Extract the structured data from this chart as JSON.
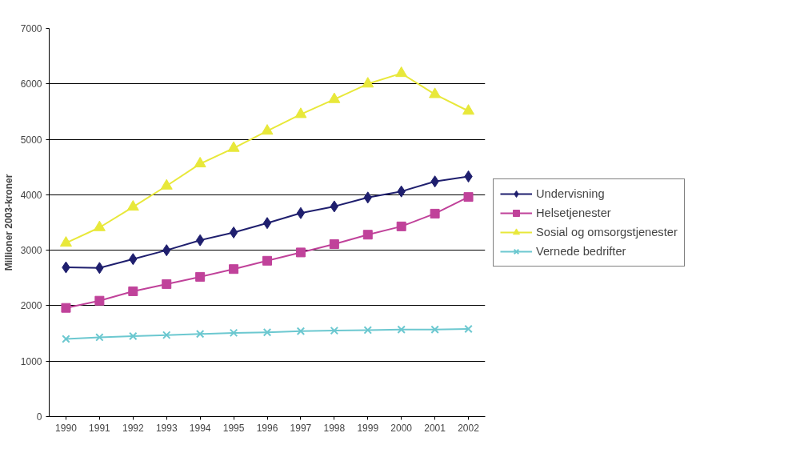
{
  "chart_data": {
    "type": "line",
    "ylabel": "Millioner 2003-kroner",
    "categories": [
      "1990",
      "1991",
      "1992",
      "1993",
      "1994",
      "1995",
      "1996",
      "1997",
      "1998",
      "1999",
      "2000",
      "2001",
      "2002"
    ],
    "ylim": [
      0,
      7000
    ],
    "yticks": [
      0,
      1000,
      2000,
      3000,
      4000,
      5000,
      6000,
      7000
    ],
    "grid": "y",
    "legend": "right",
    "line_style": "solid",
    "series": [
      {
        "name": "Undervisning",
        "color": "#1f1f6e",
        "marker": "diamond",
        "values": [
          2690,
          2680,
          2840,
          3000,
          3180,
          3320,
          3490,
          3670,
          3790,
          3950,
          4060,
          4240,
          4330
        ]
      },
      {
        "name": "Helsetjenester",
        "color": "#c0429a",
        "marker": "square",
        "values": [
          1960,
          2090,
          2260,
          2390,
          2520,
          2660,
          2810,
          2960,
          3110,
          3280,
          3430,
          3660,
          3960
        ]
      },
      {
        "name": "Sosial og omsorgstjenester",
        "color": "#e8e83a",
        "marker": "triangle",
        "values": [
          3130,
          3410,
          3780,
          4160,
          4560,
          4840,
          5150,
          5450,
          5720,
          6000,
          6190,
          5810,
          5510
        ]
      },
      {
        "name": "Vernede bedrifter",
        "color": "#6cc8d0",
        "marker": "cross",
        "values": [
          1400,
          1430,
          1450,
          1470,
          1490,
          1510,
          1520,
          1540,
          1550,
          1560,
          1570,
          1570,
          1580
        ]
      }
    ]
  }
}
